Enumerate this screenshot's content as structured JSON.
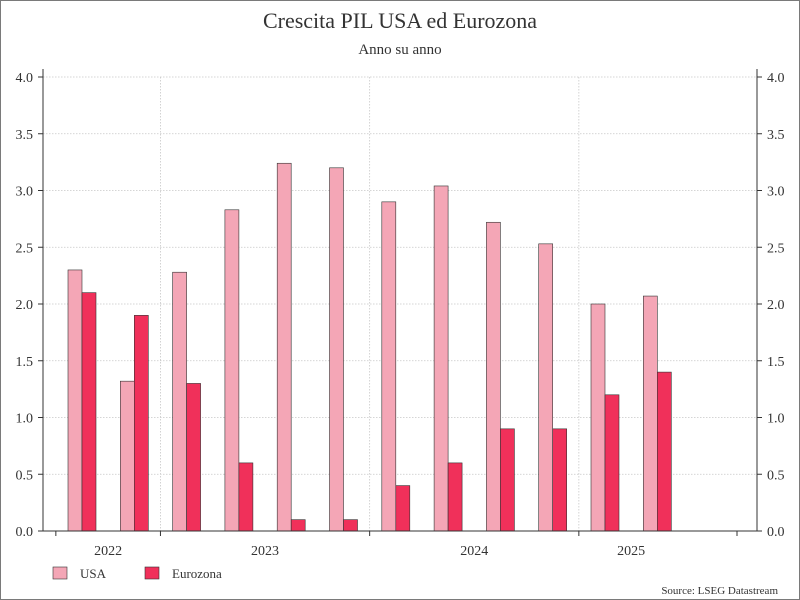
{
  "chart_data": {
    "type": "bar",
    "title": "Crescita PIL USA ed Eurozona",
    "subtitle": "Anno su anno",
    "source": "Source: LSEG Datastream",
    "year_labels": [
      "2022",
      "2023",
      "2024",
      "2025"
    ],
    "group_years": [
      2022,
      2022,
      2023,
      2023,
      2023,
      2023,
      2024,
      2024,
      2024,
      2024,
      2025,
      2025
    ],
    "ylim": [
      0,
      4
    ],
    "yticks": [
      "0.0",
      "0.5",
      "1.0",
      "1.5",
      "2.0",
      "2.5",
      "3.0",
      "3.5",
      "4.0"
    ],
    "grid": true,
    "legend_position": "bottom-left",
    "series": [
      {
        "name": "USA",
        "color": "#f4a6b6",
        "values": [
          2.3,
          1.32,
          2.28,
          2.83,
          3.24,
          3.2,
          2.9,
          3.04,
          2.72,
          2.53,
          2.0,
          2.07
        ]
      },
      {
        "name": "Eurozona",
        "color": "#f0305a",
        "values": [
          2.1,
          1.9,
          1.3,
          0.6,
          0.1,
          0.1,
          0.4,
          0.6,
          0.9,
          0.9,
          1.2,
          1.4
        ]
      }
    ]
  }
}
